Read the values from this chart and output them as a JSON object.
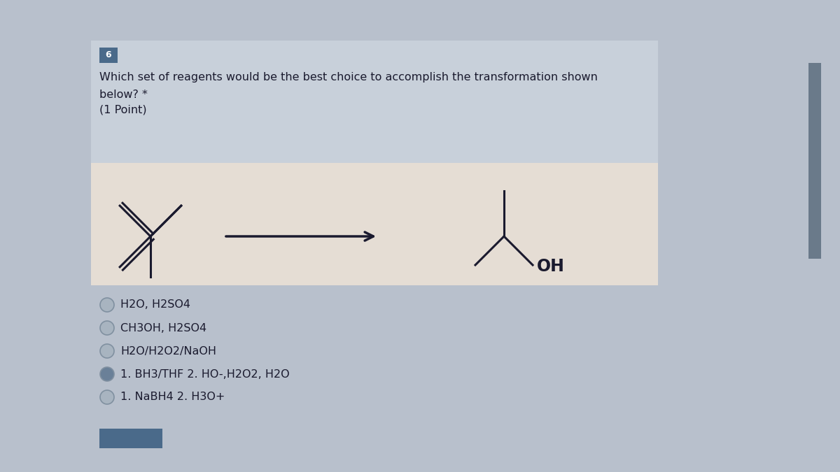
{
  "bg_color": "#cdd4dc",
  "panel_bg_blue": "#c8d0da",
  "panel_bg_cream": "#e5ddd4",
  "question_text_line1": "Which set of reagents would be the best choice to accomplish the transformation shown",
  "question_text_line2": "below? *",
  "question_text_line3": "(1 Point)",
  "question_number": "6",
  "question_number_bg": "#4a6a8a",
  "question_number_color": "#ffffff",
  "options": [
    "H2O, H2SO4",
    "CH3OH, H2SO4",
    "H2O/H2O2/NaOH",
    "1. BH3/THF 2. HO-,H2O2, H2O",
    "1. NaBH4 2. H3O+"
  ],
  "option_circle_colors": [
    "#a8b4c0",
    "#a8b4c0",
    "#a8b4c0",
    "#6a8098",
    "#a8b4c0"
  ],
  "text_color": "#1a1a2e",
  "struct_line_color": "#1a1a2e",
  "overall_bg": "#b8c0cc",
  "bottom_blue_color": "#4a6a8a",
  "right_strip_color": "#6a7a8a"
}
